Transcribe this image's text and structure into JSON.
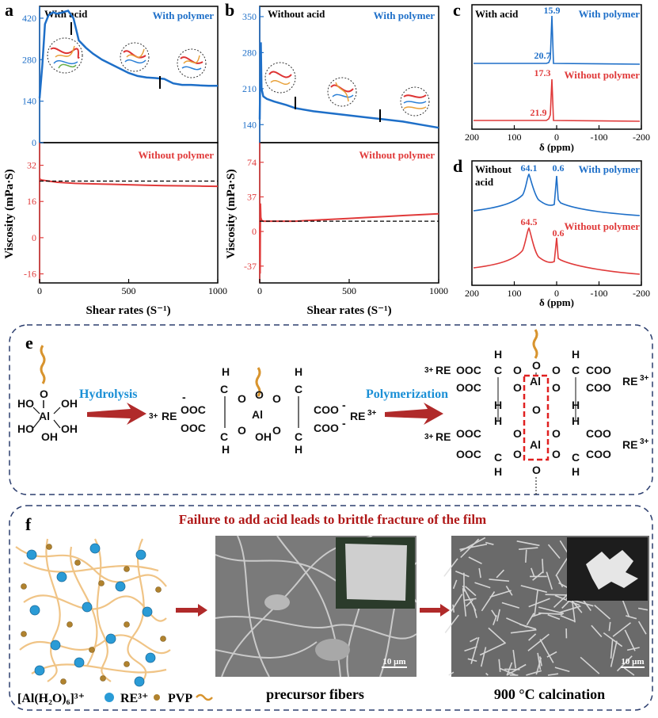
{
  "panels": {
    "a": {
      "letter": "a",
      "top_label": "With acid",
      "top_series": "With polymer",
      "bottom_series": "Without polymer",
      "ylabel": "Viscosity (mPa·S)",
      "xlabel": "Shear rates (S⁻¹)",
      "top_yticks": [
        "420",
        "280",
        "140",
        "0"
      ],
      "bottom_yticks": [
        "32",
        "16",
        "0",
        "-16"
      ],
      "xticks": [
        "0",
        "500",
        "1000"
      ]
    },
    "b": {
      "letter": "b",
      "top_label": "Without acid",
      "top_series": "With polymer",
      "bottom_series": "Without polymer",
      "ylabel": "Viscosity (mPa·S)",
      "xlabel": "Shear rates (S⁻¹)",
      "top_yticks": [
        "350",
        "280",
        "210",
        "140"
      ],
      "bottom_yticks": [
        "74",
        "37",
        "0",
        "-37"
      ],
      "xticks": [
        "0",
        "500",
        "1000"
      ]
    },
    "c": {
      "letter": "c",
      "top_label": "With acid",
      "top_series": "With polymer",
      "bottom_series": "Without polymer",
      "peak_top_major": "15.9",
      "peak_top_minor": "20.7",
      "peak_bottom_major": "17.3",
      "peak_bottom_minor": "21.9",
      "xlabel": "δ (ppm)",
      "xticks": [
        "200",
        "100",
        "0",
        "-100",
        "-200"
      ]
    },
    "d": {
      "letter": "d",
      "top_label_1": "Without",
      "top_label_2": "acid",
      "top_series": "With polymer",
      "bottom_series": "Without polymer",
      "peak_top_1": "64.1",
      "peak_top_2": "0.6",
      "peak_bottom_1": "64.5",
      "peak_bottom_2": "0.6",
      "xlabel": "δ (ppm)",
      "xticks": [
        "200",
        "100",
        "0",
        "-100",
        "-200"
      ]
    },
    "e": {
      "letter": "e",
      "step1": "Hydrolysis",
      "step2": "Polymerization"
    },
    "f": {
      "letter": "f",
      "title": "Failure to add acid leads to brittle fracture of the film",
      "legend_al": "[Al(H₂O)₆]³⁺",
      "legend_re": "RE³⁺",
      "legend_pvp": "PVP",
      "caption_precursor": "precursor fibers",
      "caption_calcination": "900 °C calcination",
      "scalebar_1": "10 μm",
      "scalebar_2": "10 μm"
    }
  },
  "chart_data": [
    {
      "type": "line",
      "panel": "a-top",
      "title": "",
      "xlabel": "Shear rates (S⁻¹)",
      "ylabel": "Viscosity (mPa·S)",
      "xlim": [
        0,
        1000
      ],
      "ylim": [
        0,
        460
      ],
      "series": [
        {
          "name": "With polymer",
          "x": [
            0,
            15,
            30,
            50,
            75,
            100,
            130,
            160,
            190,
            220,
            260,
            300,
            350,
            400,
            450,
            500,
            550,
            600,
            650,
            700,
            750,
            800,
            850,
            900,
            950,
            1000
          ],
          "y": [
            150,
            260,
            400,
            430,
            440,
            435,
            440,
            445,
            420,
            345,
            320,
            300,
            280,
            265,
            250,
            235,
            225,
            220,
            218,
            215,
            200,
            195,
            195,
            193,
            192,
            192
          ]
        }
      ]
    },
    {
      "type": "line",
      "panel": "a-bottom",
      "xlim": [
        0,
        1000
      ],
      "ylim": [
        -20,
        42
      ],
      "series": [
        {
          "name": "Without polymer",
          "x": [
            0,
            10,
            50,
            100,
            200,
            300,
            400,
            500,
            600,
            700,
            800,
            900,
            1000
          ],
          "y": [
            26,
            25.5,
            25,
            24.5,
            24,
            23.8,
            23.6,
            23.4,
            23.2,
            23,
            22.9,
            22.8,
            22.7
          ]
        }
      ],
      "reference_y": 25
    },
    {
      "type": "line",
      "panel": "b-top",
      "xlabel": "Shear rates (S⁻¹)",
      "ylabel": "Viscosity (mPa·S)",
      "xlim": [
        0,
        1000
      ],
      "ylim": [
        105,
        370
      ],
      "series": [
        {
          "name": "With polymer",
          "x": [
            0,
            3,
            6,
            10,
            20,
            40,
            80,
            150,
            200,
            300,
            400,
            500,
            600,
            700,
            800,
            900,
            1000
          ],
          "y": [
            150,
            240,
            300,
            210,
            195,
            190,
            185,
            178,
            172,
            166,
            162,
            158,
            154,
            150,
            146,
            140,
            134
          ]
        }
      ]
    },
    {
      "type": "line",
      "panel": "b-bottom",
      "xlim": [
        0,
        1000
      ],
      "ylim": [
        -55,
        95
      ],
      "series": [
        {
          "name": "Without polymer",
          "x": [
            0,
            2,
            4,
            6,
            10,
            20,
            100,
            200,
            300,
            400,
            500,
            600,
            700,
            800,
            900,
            1000
          ],
          "y": [
            5,
            -45,
            30,
            15,
            12,
            11,
            11,
            11,
            12,
            13,
            14,
            15,
            16,
            17,
            18,
            19
          ]
        }
      ],
      "reference_y": 11
    },
    {
      "type": "line",
      "panel": "c",
      "xlabel": "δ (ppm)",
      "xlim": [
        200,
        -200
      ],
      "series": [
        {
          "name": "With polymer",
          "peaks": [
            15.9,
            20.7
          ]
        },
        {
          "name": "Without polymer",
          "peaks": [
            17.3,
            21.9
          ]
        }
      ]
    },
    {
      "type": "line",
      "panel": "d",
      "xlabel": "δ (ppm)",
      "xlim": [
        200,
        -200
      ],
      "series": [
        {
          "name": "With polymer",
          "peaks": [
            64.1,
            0.6
          ]
        },
        {
          "name": "Without polymer",
          "peaks": [
            64.5,
            0.6
          ]
        }
      ]
    }
  ],
  "colors": {
    "blue": "#1e6fc8",
    "red": "#e03a3a",
    "darkred": "#b01818",
    "navy": "#2c3e6e",
    "fiber": "#e8b06a",
    "al": "#2a9bd6",
    "re": "#b0822e"
  }
}
